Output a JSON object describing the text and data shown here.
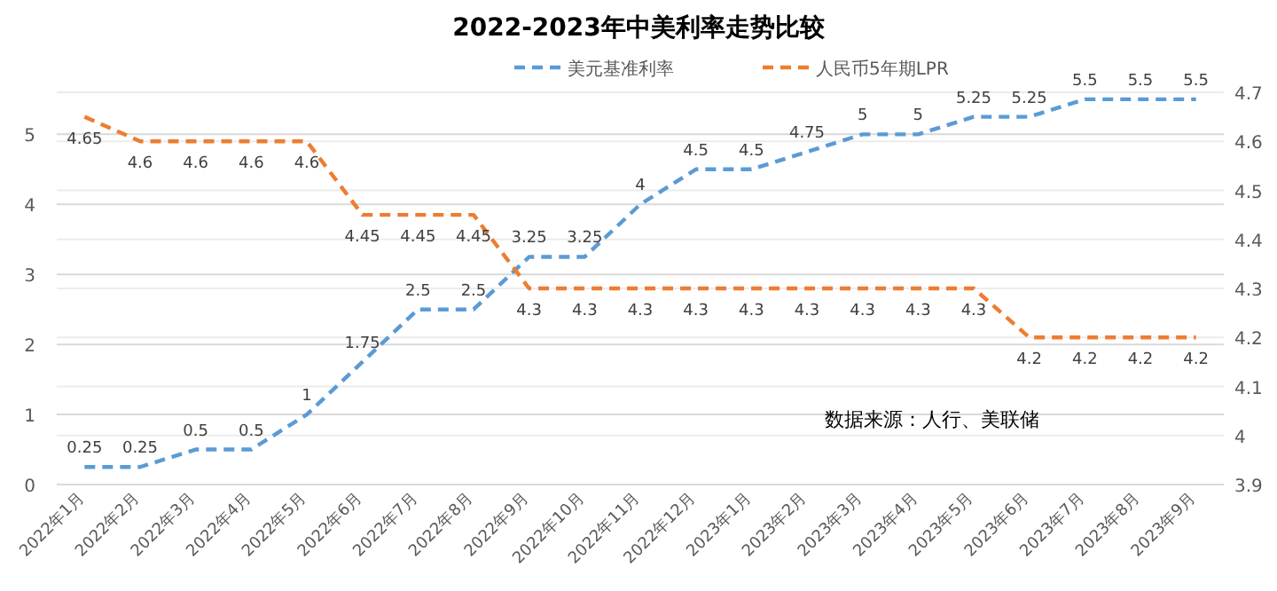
{
  "chart_data": {
    "type": "line",
    "title": "2022-2023年中美利率走势比较",
    "categories": [
      "2022年1月",
      "2022年2月",
      "2022年3月",
      "2022年4月",
      "2022年5月",
      "2022年6月",
      "2022年7月",
      "2022年8月",
      "2022年9月",
      "2022年10月",
      "2022年11月",
      "2022年12月",
      "2023年1月",
      "2023年2月",
      "2023年3月",
      "2023年4月",
      "2023年5月",
      "2023年6月",
      "2023年7月",
      "2023年8月",
      "2023年9月"
    ],
    "series": [
      {
        "name": "美元基准利率",
        "color": "#5b9bd5",
        "values": [
          0.25,
          0.25,
          0.5,
          0.5,
          1,
          1.75,
          2.5,
          2.5,
          3.25,
          3.25,
          4,
          4.5,
          4.5,
          4.75,
          5,
          5,
          5.25,
          5.25,
          5.5,
          5.5,
          5.5
        ]
      },
      {
        "name": "人民币5年期LPR",
        "color": "#ed7d31",
        "axis": "y2",
        "values": [
          4.65,
          4.6,
          4.6,
          4.6,
          4.6,
          4.45,
          4.45,
          4.45,
          4.3,
          4.3,
          4.3,
          4.3,
          4.3,
          4.3,
          4.3,
          4.3,
          4.3,
          4.2,
          4.2,
          4.2,
          4.2
        ]
      }
    ],
    "ylim": [
      0,
      5.6
    ],
    "yticks": [
      0,
      1,
      2,
      3,
      4,
      5
    ],
    "y2lim": [
      3.9,
      4.7
    ],
    "y2ticks": [
      3.9,
      4,
      4.1,
      4.2,
      4.3,
      4.4,
      4.5,
      4.6,
      4.7
    ],
    "grid": "y",
    "legend": "top",
    "line_style": "dashed",
    "marker": "none",
    "data_labels": true,
    "annotations": [
      "数据来源：人行、美联储"
    ]
  }
}
